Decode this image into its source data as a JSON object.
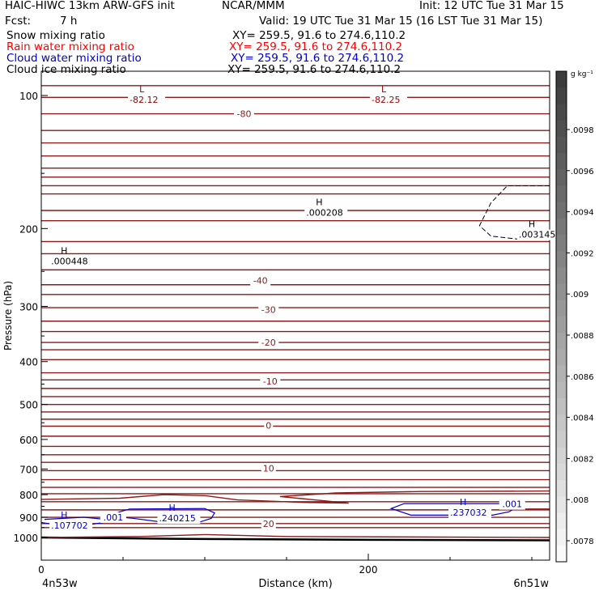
{
  "header": {
    "title_left": "HAIC-HIWC 13km ARW-GFS init",
    "org": "NCAR/MMM",
    "init": "Init: 12 UTC Tue 31 Mar 15",
    "fcst_label": "Fcst:",
    "fcst_value": "7 h",
    "valid": "Valid: 19 UTC Tue 31 Mar 15 (16 LST Tue 31 Mar 15)"
  },
  "legend": [
    {
      "name": "Snow mixing ratio",
      "xy": "XY= 259.5, 91.6 to 274.6,110.2",
      "color": "#000000"
    },
    {
      "name": "Rain water mixing ratio",
      "xy": "XY= 259.5, 91.6 to 274.6,110.2",
      "color": "#ff0000"
    },
    {
      "name": "Cloud water mixing ratio",
      "xy": "XY= 259.5, 91.6 to 274.6,110.2",
      "color": "#0000cc"
    },
    {
      "name": "Cloud ice mixing ratio",
      "xy": "XY= 259.5, 91.6 to 274.6,110.2",
      "color": "#000000"
    }
  ],
  "chart_data": {
    "type": "contour cross-section",
    "xlabel": "Distance (km)",
    "ylabel": "Pressure (hPa)",
    "x_ticks": [
      0,
      200
    ],
    "y_ticks": [
      100,
      200,
      300,
      400,
      500,
      600,
      700,
      800,
      900,
      1000
    ],
    "y_scale": "log",
    "x_endpoints": [
      "4n53w",
      "6n51w"
    ],
    "colorbar_unit": "g kg⁻¹",
    "colorbar_ticks": [
      ".0098",
      ".0096",
      ".0094",
      ".0092",
      ".009",
      ".0088",
      ".0086",
      ".0084",
      ".0082",
      ".008",
      ".0078"
    ],
    "temperature_contour_labels": [
      {
        "text": "-80",
        "x": 124,
        "p": 110
      },
      {
        "text": "-40",
        "x": 134,
        "p": 262
      },
      {
        "text": "-30",
        "x": 139,
        "p": 305
      },
      {
        "text": "-20",
        "x": 139,
        "p": 362
      },
      {
        "text": "-10",
        "x": 140,
        "p": 443
      },
      {
        "text": "0",
        "x": 139,
        "p": 558
      },
      {
        "text": "10",
        "x": 139,
        "p": 697
      },
      {
        "text": "20",
        "x": 139,
        "p": 930
      }
    ],
    "extrema_labels": [
      {
        "mark": "L",
        "value": "-82.12",
        "x": 54,
        "p": 100,
        "color": "#990000"
      },
      {
        "mark": "L",
        "value": "-82.25",
        "x": 202,
        "p": 100,
        "color": "#990000"
      },
      {
        "mark": "H",
        "value": ".000208",
        "x": 162,
        "p": 180,
        "color": "#000000"
      },
      {
        "mark": "H",
        "value": ".000448",
        "x": 6,
        "p": 232,
        "color": "#000000"
      },
      {
        "mark": "H",
        "value": ".003145",
        "x": 292,
        "p": 202,
        "color": "#000000"
      },
      {
        "mark": "H",
        "value": ".240215",
        "x": 72,
        "p": 885,
        "color": "#0000cc"
      },
      {
        "mark": "H",
        "value": ".107702",
        "x": 6,
        "p": 920,
        "color": "#0000cc"
      },
      {
        "mark": "H",
        "value": ".237032",
        "x": 250,
        "p": 860,
        "color": "#0000cc"
      }
    ],
    "cloud_water_contour_labels": [
      {
        "text": ".001",
        "x": 44,
        "p": 900
      },
      {
        "text": ".001",
        "x": 288,
        "p": 840
      }
    ]
  }
}
